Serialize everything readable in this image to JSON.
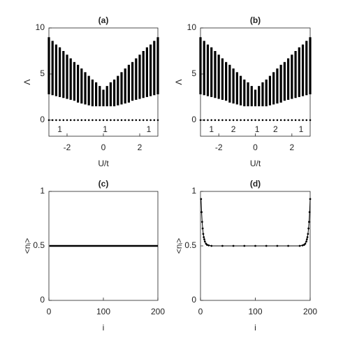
{
  "chart_data": [
    {
      "type": "range",
      "title": "(a)",
      "xlabel": "U/t",
      "ylabel": "Λ",
      "xlim": [
        -3,
        3
      ],
      "ylim": [
        -1.75,
        10
      ],
      "xticks": [
        -2,
        0,
        2
      ],
      "yticks": [
        0,
        5,
        10
      ],
      "color": "#000000",
      "x": [
        -3,
        -2.8,
        -2.6,
        -2.4,
        -2.2,
        -2,
        -1.8,
        -1.6,
        -1.4,
        -1.2,
        -1,
        -0.8,
        -0.6,
        -0.4,
        -0.2,
        0,
        0.2,
        0.4,
        0.6,
        0.8,
        1,
        1.2,
        1.4,
        1.6,
        1.8,
        2,
        2.2,
        2.4,
        2.6,
        2.8,
        3
      ],
      "low": [
        2.8,
        2.7,
        2.6,
        2.5,
        2.4,
        2.3,
        2.2,
        2.1,
        1.9,
        1.8,
        1.7,
        1.6,
        1.5,
        1.5,
        1.5,
        1.5,
        1.5,
        1.5,
        1.5,
        1.6,
        1.7,
        1.8,
        1.9,
        2.1,
        2.2,
        2.3,
        2.4,
        2.5,
        2.6,
        2.7,
        2.8
      ],
      "high": [
        9,
        8.6,
        8.2,
        7.9,
        7.5,
        7.1,
        6.7,
        6.3,
        6,
        5.6,
        5.2,
        4.8,
        4.4,
        4.1,
        3.7,
        3.3,
        3.7,
        4.1,
        4.4,
        4.8,
        5.2,
        5.6,
        6,
        6.3,
        6.7,
        7.1,
        7.5,
        7.9,
        8.2,
        8.6,
        9
      ],
      "zero": [
        0,
        0,
        0,
        0,
        0,
        0,
        0,
        0,
        0,
        0,
        0,
        0,
        0,
        0,
        0,
        0,
        0,
        0,
        0,
        0,
        0,
        0,
        0,
        0,
        0,
        0,
        0,
        0,
        0,
        0,
        0
      ],
      "annotations": [
        {
          "text": "1",
          "x": -2.4,
          "y": -1.05
        },
        {
          "text": "1",
          "x": 0.1,
          "y": -1.05
        },
        {
          "text": "1",
          "x": 2.5,
          "y": -1.05
        }
      ]
    },
    {
      "type": "range",
      "title": "(b)",
      "xlabel": "U/t",
      "ylabel": "Λ",
      "xlim": [
        -3,
        3
      ],
      "ylim": [
        -1.75,
        10
      ],
      "xticks": [
        -2,
        0,
        2
      ],
      "yticks": [
        0,
        5,
        10
      ],
      "color": "#000000",
      "x": [
        -3,
        -2.8,
        -2.6,
        -2.4,
        -2.2,
        -2,
        -1.8,
        -1.6,
        -1.4,
        -1.2,
        -1,
        -0.8,
        -0.6,
        -0.4,
        -0.2,
        0,
        0.2,
        0.4,
        0.6,
        0.8,
        1,
        1.2,
        1.4,
        1.6,
        1.8,
        2,
        2.2,
        2.4,
        2.6,
        2.8,
        3
      ],
      "low": [
        2.8,
        2.7,
        2.6,
        2.5,
        2.4,
        2.3,
        2.2,
        2.1,
        1.9,
        1.8,
        1.7,
        1.6,
        1.5,
        1.5,
        1.5,
        1.5,
        1.5,
        1.5,
        1.5,
        1.6,
        1.7,
        1.8,
        1.9,
        2.1,
        2.2,
        2.3,
        2.4,
        2.5,
        2.6,
        2.7,
        2.8
      ],
      "high": [
        9,
        8.6,
        8.2,
        7.9,
        7.5,
        7.1,
        6.7,
        6.3,
        6,
        5.6,
        5.2,
        4.8,
        4.4,
        4.1,
        3.7,
        3.3,
        3.7,
        4.1,
        4.4,
        4.8,
        5.2,
        5.6,
        6,
        6.3,
        6.7,
        7.1,
        7.5,
        7.9,
        8.2,
        8.6,
        9
      ],
      "zero": [
        0,
        0,
        0,
        0,
        0,
        0,
        0,
        0,
        0,
        0,
        0,
        0,
        0,
        0,
        0,
        0,
        0,
        0,
        0,
        0,
        0,
        0,
        0,
        0,
        0,
        0,
        0,
        0,
        0,
        0,
        0
      ],
      "annotations": [
        {
          "text": "1",
          "x": -2.4,
          "y": -1.05
        },
        {
          "text": "2",
          "x": -1.2,
          "y": -1.05
        },
        {
          "text": "1",
          "x": 0.1,
          "y": -1.05
        },
        {
          "text": "2",
          "x": 1.1,
          "y": -1.05
        },
        {
          "text": "1",
          "x": 2.5,
          "y": -1.05
        }
      ]
    },
    {
      "type": "line",
      "title": "(c)",
      "xlabel": "i",
      "ylabel": "<nᵢ>",
      "xlim": [
        0,
        200
      ],
      "ylim": [
        0,
        1
      ],
      "xticks": [
        0,
        100,
        200
      ],
      "yticks": [
        0,
        0.5,
        1
      ],
      "color": "#000000",
      "markers": false,
      "x": [
        1,
        50,
        100,
        150,
        200
      ],
      "values": [
        0.5,
        0.5,
        0.5,
        0.5,
        0.5
      ]
    },
    {
      "type": "line",
      "title": "(d)",
      "xlabel": "i",
      "ylabel": "<nᵢ>",
      "xlim": [
        0,
        200
      ],
      "ylim": [
        0,
        1
      ],
      "xticks": [
        0,
        100,
        200
      ],
      "yticks": [
        0,
        0.5,
        1
      ],
      "color": "#000000",
      "markers": true,
      "x": [
        1,
        2,
        3,
        4,
        5,
        6,
        7,
        8,
        10,
        12,
        15,
        20,
        40,
        60,
        80,
        100,
        120,
        140,
        160,
        181,
        186,
        189,
        191,
        193,
        194,
        195,
        196,
        197,
        198,
        199,
        200
      ],
      "values": [
        0.93,
        0.81,
        0.72,
        0.66,
        0.61,
        0.58,
        0.56,
        0.54,
        0.52,
        0.51,
        0.505,
        0.5,
        0.5,
        0.5,
        0.5,
        0.5,
        0.5,
        0.5,
        0.5,
        0.5,
        0.505,
        0.51,
        0.52,
        0.54,
        0.56,
        0.58,
        0.61,
        0.66,
        0.72,
        0.81,
        0.93
      ]
    }
  ]
}
